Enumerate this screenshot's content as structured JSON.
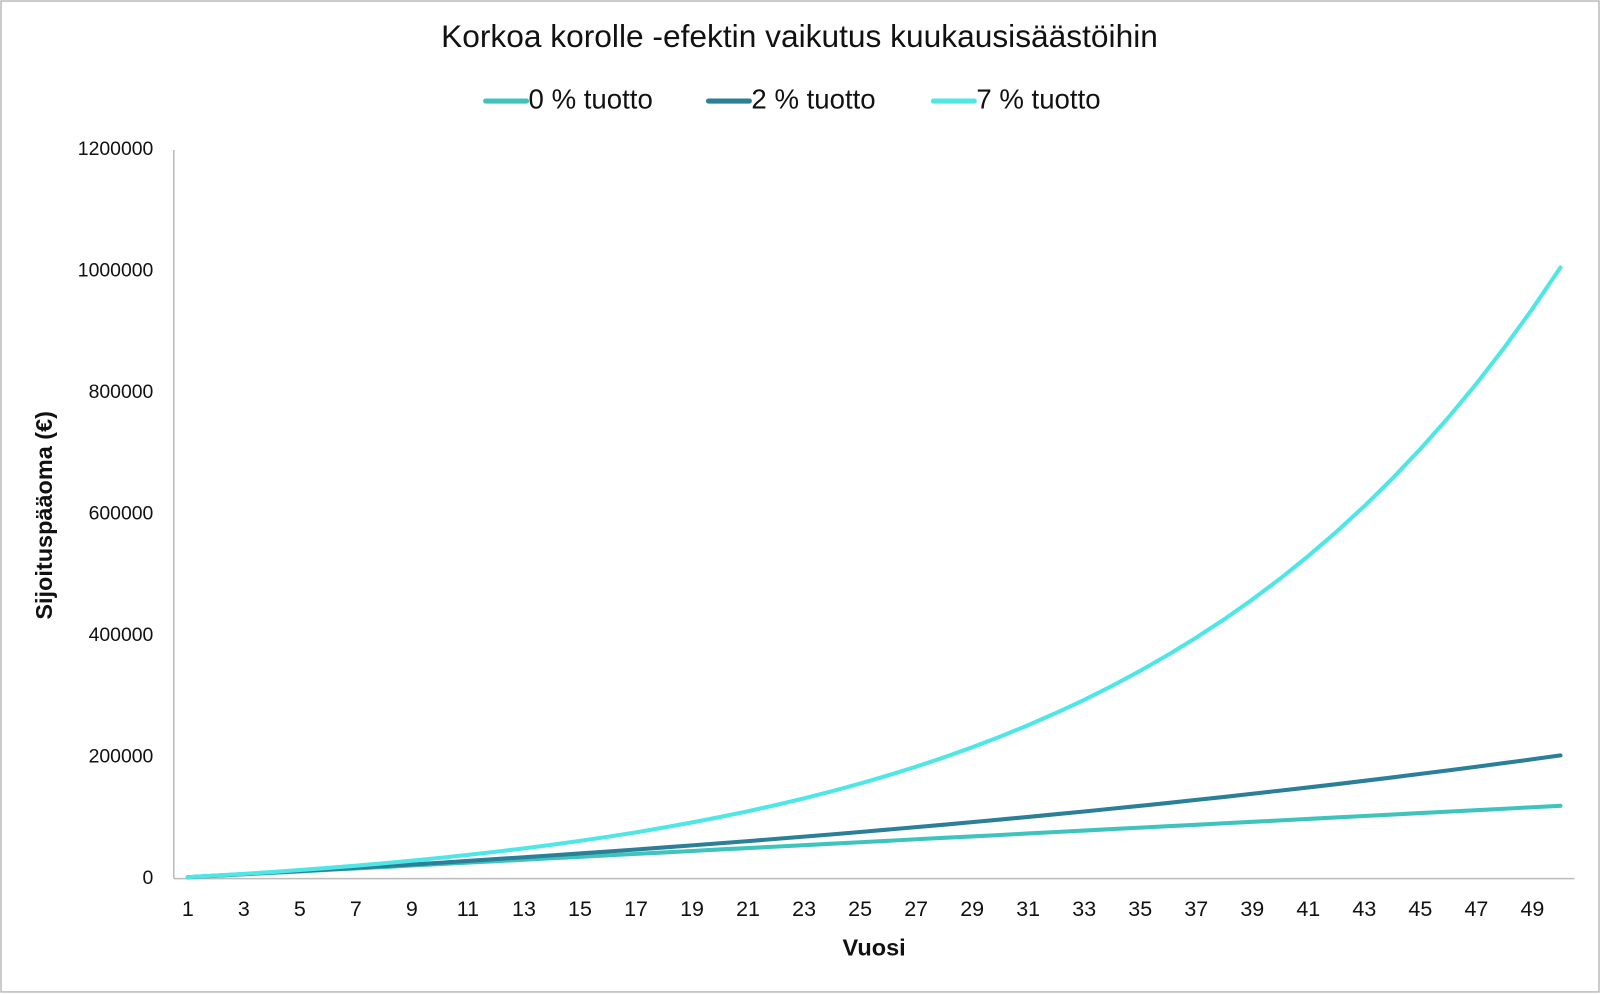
{
  "chart_data": {
    "type": "line",
    "title": "Korkoa korolle -efektin vaikutus kuukausisäästöihin",
    "x_label": "Vuosi",
    "y_label": "Sijoituspääoma (€)",
    "x": [
      1,
      2,
      3,
      4,
      5,
      6,
      7,
      8,
      9,
      10,
      11,
      12,
      13,
      14,
      15,
      16,
      17,
      18,
      19,
      20,
      21,
      22,
      23,
      24,
      25,
      26,
      27,
      28,
      29,
      30,
      31,
      32,
      33,
      34,
      35,
      36,
      37,
      38,
      39,
      40,
      41,
      42,
      43,
      44,
      45,
      46,
      47,
      48,
      49,
      50
    ],
    "series": [
      {
        "name": "0 % tuotto",
        "color": "#3fc4bd",
        "values": [
          2400,
          4800,
          7200,
          9600,
          12000,
          14400,
          16800,
          19200,
          21600,
          24000,
          26400,
          28800,
          31200,
          33600,
          36000,
          38400,
          40800,
          43200,
          45600,
          48000,
          50400,
          52800,
          55200,
          57600,
          60000,
          62400,
          64800,
          67200,
          69600,
          72000,
          74400,
          76800,
          79200,
          81600,
          84000,
          86400,
          88800,
          91200,
          93600,
          96000,
          98400,
          100800,
          103200,
          105600,
          108000,
          110400,
          112800,
          115200,
          117600,
          120000
        ]
      },
      {
        "name": "2 % tuotto",
        "color": "#2b7f98",
        "values": [
          2400,
          4848,
          7345,
          9892,
          12490,
          15139,
          17842,
          20599,
          23411,
          26279,
          29205,
          32189,
          35233,
          38337,
          41504,
          44734,
          48029,
          51390,
          54817,
          58314,
          61880,
          65518,
          69228,
          73012,
          76873,
          80810,
          84826,
          88923,
          93101,
          97363,
          101711,
          106145,
          110668,
          115281,
          119987,
          124786,
          129682,
          134676,
          139769,
          144965,
          150264,
          155669,
          161183,
          166806,
          172542,
          178393,
          184361,
          190448,
          196657,
          202991
        ]
      },
      {
        "name": "7 % tuotto",
        "color": "#4fe6e6",
        "values": [
          2476,
          5128,
          7960,
          10994,
          14240,
          17710,
          21428,
          25404,
          29658,
          34213,
          39082,
          44297,
          49871,
          55836,
          62222,
          69049,
          76370,
          84186,
          92556,
          101508,
          111090,
          121343,
          132313,
          144051,
          156611,
          170049,
          184430,
          199814,
          216278,
          233892,
          252740,
          272909,
          294489,
          317578,
          342286,
          368721,
          397008,
          427275,
          459660,
          494313,
          531391,
          571065,
          613516,
          658937,
          707539,
          759543,
          815186,
          874727,
          938434,
          1006601
        ]
      }
    ],
    "xlim": [
      0.5,
      50.5
    ],
    "xticks": [
      1,
      3,
      5,
      7,
      9,
      11,
      13,
      15,
      17,
      19,
      21,
      23,
      25,
      27,
      29,
      31,
      33,
      35,
      37,
      39,
      41,
      43,
      45,
      47,
      49
    ],
    "ylim": [
      0,
      1200000
    ],
    "yticks": [
      0,
      200000,
      400000,
      600000,
      800000,
      1000000,
      1200000
    ],
    "grid": false
  }
}
